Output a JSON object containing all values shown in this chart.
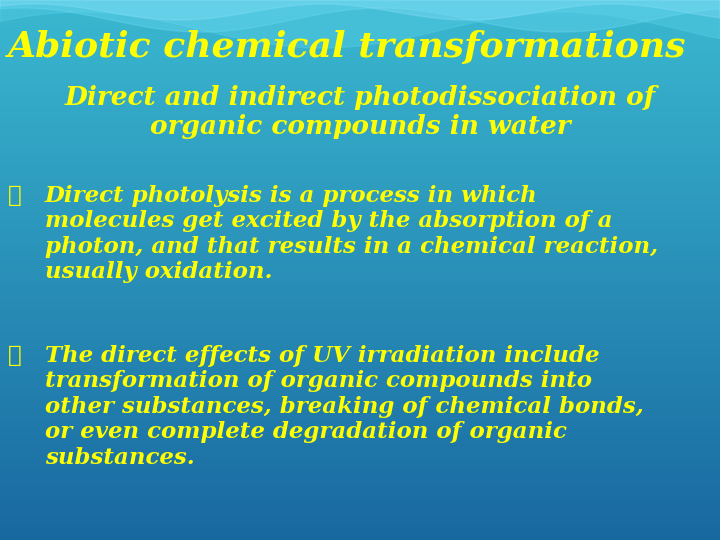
{
  "title": "Abiotic chemical transformations",
  "subtitle": "Direct and indirect photodissociation of\norganic compounds in water",
  "bullet1_text": "Direct photolysis is a process in which\nmolecules get excited by the absorption of a\nphoton, and that results in a chemical reaction,\nusually oxidation.",
  "bullet2_text": "The direct effects of UV irradiation include\ntransformation of organic compounds into\nother substances, breaking of chemical bonds,\nor even complete degradation of organic\nsubstances.",
  "text_color": "#FFFF00",
  "bg_top": "#2ab0c8",
  "bg_mid": "#1878a8",
  "bg_bottom": "#1868a0",
  "wave_color1": "#40c0d8",
  "wave_color2": "#50c8e0",
  "title_fontsize": 26,
  "subtitle_fontsize": 19,
  "body_fontsize": 16.5,
  "arrow": "Ø"
}
